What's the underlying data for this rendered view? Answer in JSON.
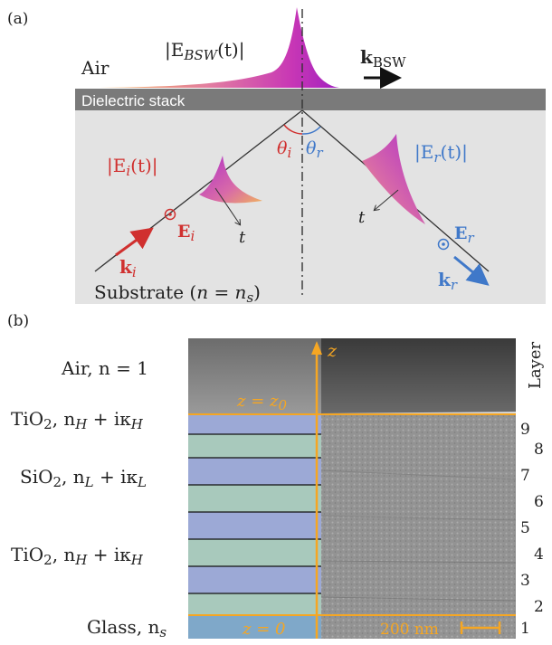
{
  "panel_a": {
    "label": "(a)",
    "air": "Air",
    "dielectric": "Dielectric stack",
    "substrate": "Substrate (",
    "substrate_eq": "n = n",
    "substrate_sub": "s",
    "substrate_close": ")",
    "bsw_field": "|E",
    "bsw_sub": "BSW",
    "bsw_t": "(t)|",
    "k_bsw": "k",
    "k_bsw_sub": "BSW",
    "ei_field": "|E",
    "ei_sub": "i",
    "ei_t": "(t)|",
    "er_field": "|E",
    "er_sub": "r",
    "er_t": "(t)|",
    "theta_i": "θ",
    "theta_i_sub": "i",
    "theta_r": "θ",
    "theta_r_sub": "r",
    "Ei": "E",
    "Ei_sub": "i",
    "ki": "k",
    "ki_sub": "i",
    "Er": "E",
    "Er_sub": "r",
    "kr": "k",
    "kr_sub": "r",
    "t_left": "t",
    "t_right": "t"
  },
  "panel_b": {
    "label": "(b)",
    "layer_title": "Layer",
    "layers": [
      "1",
      "2",
      "3",
      "4",
      "5",
      "6",
      "7",
      "8",
      "9"
    ],
    "air_label": "Air, n = 1",
    "tio2_top": "TiO",
    "sio2": "SiO",
    "tio2_bottom": "TiO",
    "sub2": "2",
    "tio2_index": ", n",
    "tio2_index_sub": "H",
    "tio2_index_k": " + iκ",
    "tio2_index_ksub": "H",
    "sio2_index": ", n",
    "sio2_index_sub": "L",
    "sio2_index_k": " + iκ",
    "sio2_index_ksub": "L",
    "glass": "Glass, n",
    "glass_sub": "s",
    "z_axis": "z",
    "z_top": "z = z",
    "z_top_sub": "0",
    "z_bottom": "z = 0",
    "scale_bar": "200 nm"
  },
  "colors": {
    "accent_orange": "#f5a623",
    "field_pink": "#c837b5",
    "incident_red": "#d0302f",
    "reflected_blue": "#3f78c9",
    "stack_gray": "#7a7a7a",
    "substrate_gray": "#e3e3e3"
  }
}
